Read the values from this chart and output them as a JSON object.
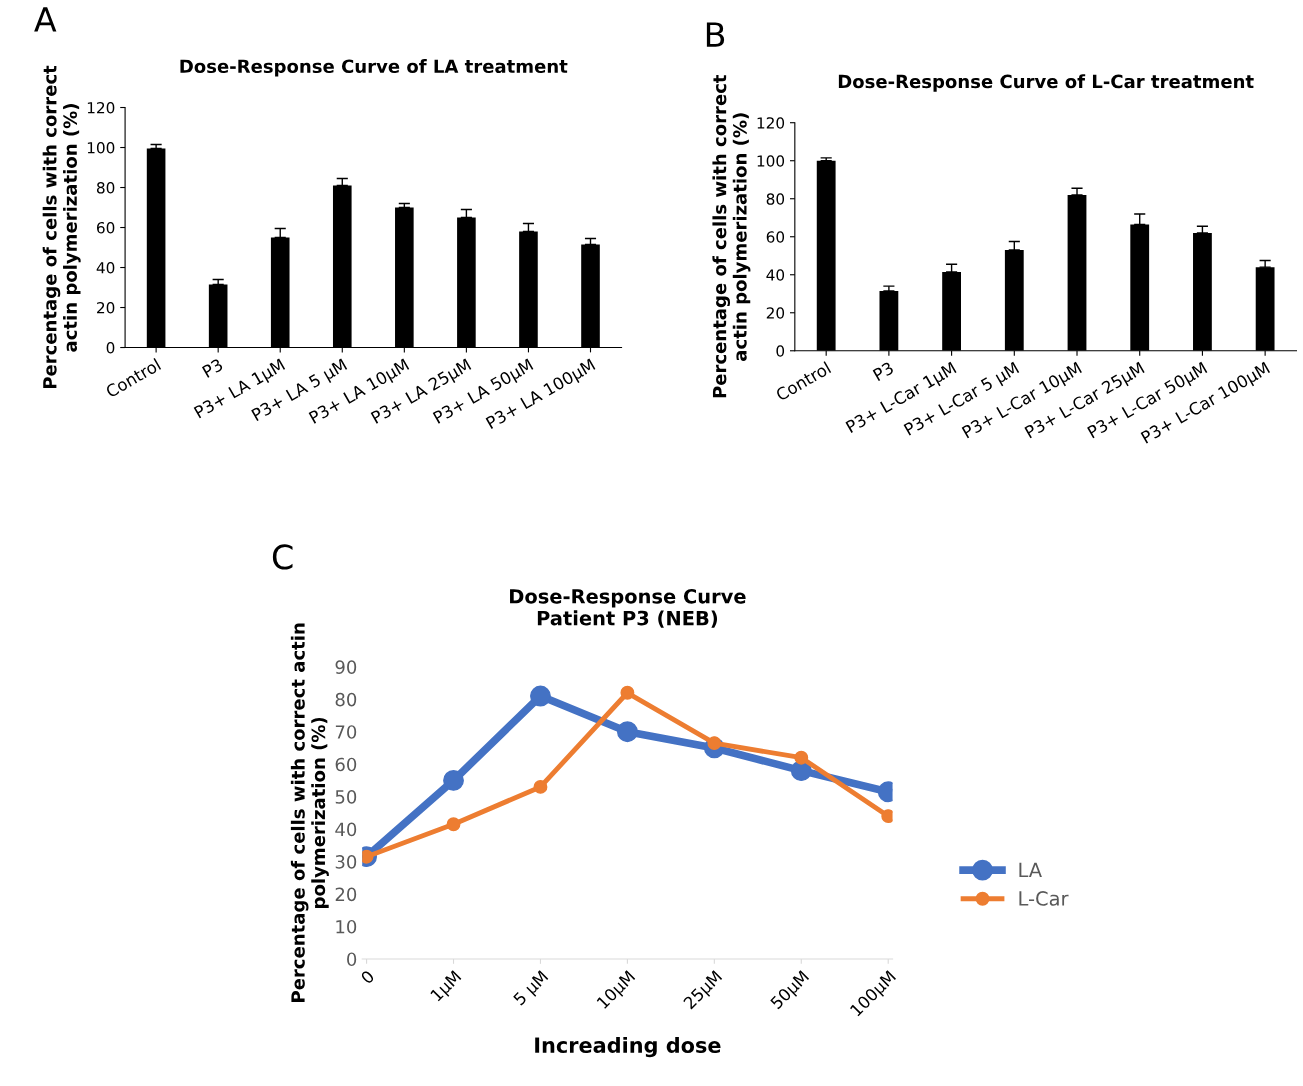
{
  "chart_data": [
    {
      "type": "bar",
      "title": "Dose-Response Curve of LA treatment",
      "ylabel": "Percentage of cells with correct\nactin polymerization (%)",
      "annotations": [
        "A"
      ],
      "categories": [
        "Control",
        "P3",
        "P3+ LA 1µM",
        "P3+ LA 5 µM",
        "P3+ LA 10µM",
        "P3+ LA 25µM",
        "P3+ LA 50µM",
        "P3+ LA 100µM"
      ],
      "values": [
        99.5,
        31.5,
        55,
        81,
        70,
        65,
        58,
        51.5
      ],
      "color": "#000000",
      "errors": [
        [
          99.5,
          101.5
        ],
        [
          31.5,
          34
        ],
        [
          55,
          59.5
        ],
        [
          81,
          84.5
        ],
        [
          70,
          72
        ],
        [
          65,
          69
        ],
        [
          58,
          62
        ],
        [
          51.5,
          54.5
        ]
      ],
      "ylim": [
        0,
        120
      ],
      "yticks": [
        0,
        20,
        40,
        60,
        80,
        100,
        120
      ],
      "grid": false,
      "legend": false
    },
    {
      "type": "bar",
      "title": "Dose-Response Curve of L-Car treatment",
      "ylabel": "Percentage of cells with correct\nactin polymerization (%)",
      "annotations": [
        "B"
      ],
      "categories": [
        "Control",
        "P3",
        "P3+ L-Car 1µM",
        "P3+ L-Car 5 µM",
        "P3+ L-Car 10µM",
        "P3+ L-Car 25µM",
        "P3+ L-Car 50µM",
        "P3+ L-Car 100µM"
      ],
      "values": [
        100,
        31.5,
        41.5,
        53,
        82,
        66.5,
        62,
        44
      ],
      "color": "#000000",
      "errors": [
        [
          100,
          101.5
        ],
        [
          31.5,
          34
        ],
        [
          41.5,
          45.5
        ],
        [
          53,
          57.5
        ],
        [
          82,
          85.5
        ],
        [
          66.5,
          72
        ],
        [
          62,
          65.5
        ],
        [
          44,
          47.5
        ]
      ],
      "ylim": [
        0,
        120
      ],
      "yticks": [
        0,
        20,
        40,
        60,
        80,
        100,
        120
      ],
      "grid": false,
      "legend": false
    },
    {
      "type": "line",
      "title": "Dose-Response Curve\nPatient P3 (NEB)",
      "xlabel": "Increading dose",
      "ylabel": "Percentage of cells with correct actin\npolymerization (%)",
      "annotations": [
        "C"
      ],
      "categories": [
        "0",
        "1µM",
        "5 µM",
        "10µM",
        "25µM",
        "50µM",
        "100µM"
      ],
      "series": [
        {
          "name": "LA",
          "color": "#4472c4",
          "values": [
            31.5,
            55,
            81,
            70,
            65,
            58,
            51.5
          ]
        },
        {
          "name": "L-Car",
          "color": "#ed7d31",
          "values": [
            31.5,
            41.5,
            53,
            82,
            66.5,
            62,
            44
          ]
        }
      ],
      "ylim": [
        0,
        90
      ],
      "yticks": [
        0,
        10,
        20,
        30,
        40,
        50,
        60,
        70,
        80,
        90
      ],
      "grid": false,
      "legend": "right",
      "marker": "circle"
    }
  ]
}
